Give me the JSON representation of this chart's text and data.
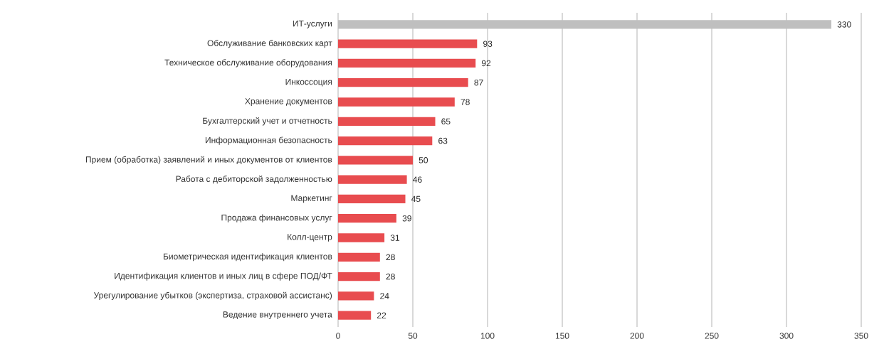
{
  "chart_data": {
    "type": "bar",
    "orientation": "horizontal",
    "categories": [
      "ИТ-услуги",
      "Обслуживание банковских карт",
      "Техническое обслуживание оборудования",
      "Инкоссоция",
      "Хранение документов",
      "Бухгалтерский учет и отчетность",
      "Информационная безопасность",
      "Прием (обработка) заявлений и иных документов от клиентов",
      "Работа с дебиторской задолженностью",
      "Маркетинг",
      "Продажа финансовых услуг",
      "Колл-центр",
      "Биометрическая идентификация клиентов",
      "Идентификация клиентов  и иных лиц в сфере  ПОД/ФТ",
      "Урегулирование убытков (экспертиза, страховой ассистанс)",
      "Ведение внутреннего учета"
    ],
    "values": [
      330,
      93,
      92,
      87,
      78,
      65,
      63,
      50,
      46,
      45,
      39,
      31,
      28,
      28,
      24,
      22
    ],
    "colors": [
      "#bfbfbf",
      "#e84c4f",
      "#e84c4f",
      "#e84c4f",
      "#e84c4f",
      "#e84c4f",
      "#e84c4f",
      "#e84c4f",
      "#e84c4f",
      "#e84c4f",
      "#e84c4f",
      "#e84c4f",
      "#e84c4f",
      "#e84c4f",
      "#e84c4f",
      "#e84c4f"
    ],
    "xlim": [
      0,
      350
    ],
    "xticks": [
      0,
      50,
      100,
      150,
      200,
      250,
      300,
      350
    ],
    "grid": "x",
    "data_labels": true
  }
}
